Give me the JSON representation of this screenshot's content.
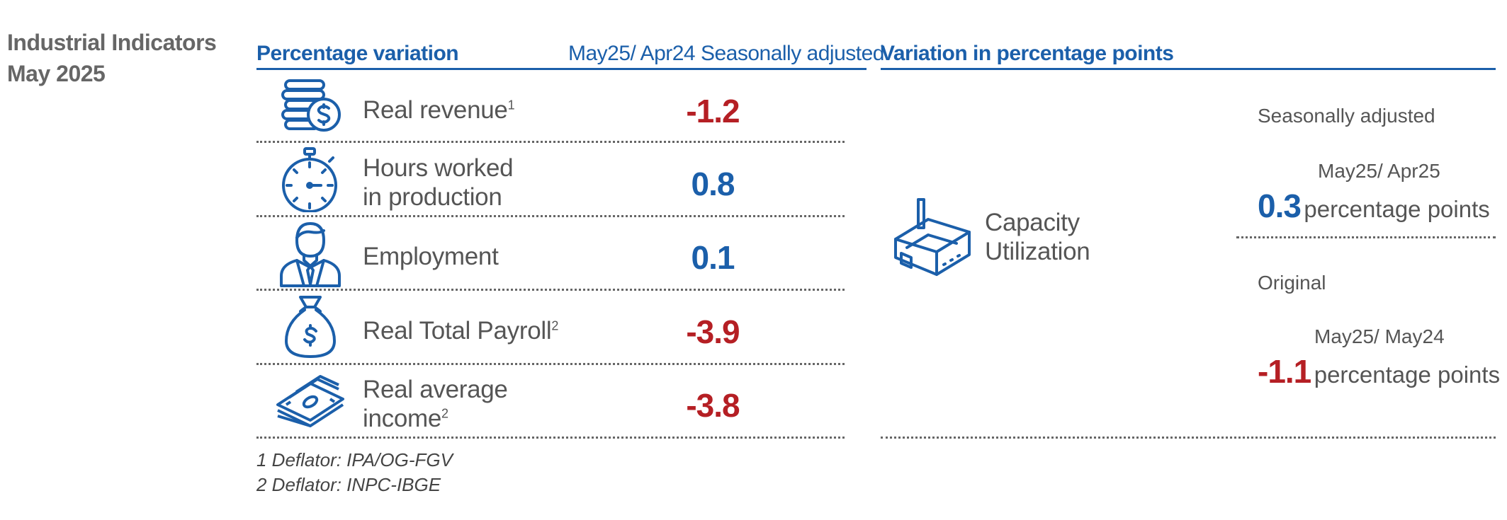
{
  "title": {
    "line1": "Industrial Indicators",
    "line2": "May 2025"
  },
  "left_panel": {
    "header_label": "Percentage variation",
    "header_period": "May25/ Apr24 Seasonally adjusted",
    "rows": [
      {
        "icon": "coins-stack-dollar-icon",
        "label": "Real revenue",
        "sup": "1",
        "value": "-1.2",
        "sign": "negative"
      },
      {
        "icon": "stopwatch-icon",
        "label_line1": "Hours worked",
        "label_line2": "in production",
        "value": "0.8",
        "sign": "positive"
      },
      {
        "icon": "person-suit-icon",
        "label": "Employment",
        "value": "0.1",
        "sign": "positive"
      },
      {
        "icon": "money-bag-dollar-icon",
        "label": "Real Total Payroll",
        "sup": "2",
        "value": "-3.9",
        "sign": "negative"
      },
      {
        "icon": "banknotes-stack-icon",
        "label_line1": "Real average",
        "label_line2": "income",
        "sup": "2",
        "value": "-3.8",
        "sign": "negative"
      }
    ],
    "footnotes": [
      "1 Deflator: IPA/OG-FGV",
      "2 Deflator: INPC-IBGE"
    ]
  },
  "right_panel": {
    "header_label": "Variation in percentage points",
    "indicator_icon": "factory-icon",
    "indicator_line1": "Capacity",
    "indicator_line2": "Utilization",
    "seasonal": {
      "label": "Seasonally adjusted",
      "period": "May25/ Apr25",
      "value": "0.3",
      "unit": "percentage points",
      "sign": "positive"
    },
    "original": {
      "label": "Original",
      "period": "May25/ May24",
      "value": "-1.1",
      "unit": "percentage points",
      "sign": "negative"
    }
  },
  "colors": {
    "blue": "#1b5faa",
    "red": "#b51f24",
    "text": "#555555"
  }
}
